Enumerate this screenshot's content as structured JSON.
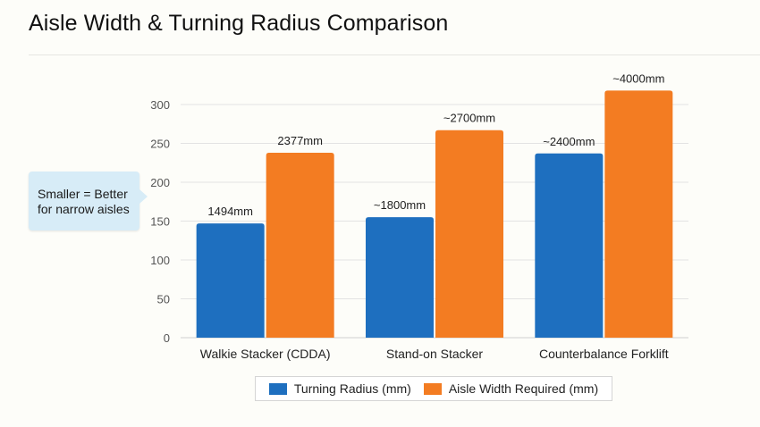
{
  "title": "Aisle Width & Turning Radius Comparison",
  "callout": "Smaller = Better for narrow aisles",
  "colors": {
    "turning": "#1e6fbf",
    "aisle": "#f37c22"
  },
  "chart_data": {
    "type": "bar",
    "title": "Aisle Width & Turning Radius Comparison",
    "categories": [
      "Walkie Stacker (CDDA)",
      "Stand-on Stacker",
      "Counterbalance Forklift"
    ],
    "series": [
      {
        "name": "Turning Radius (mm)",
        "values": [
          147,
          155,
          237
        ],
        "labels": [
          "1494mm",
          "~1800mm",
          "~2400mm"
        ]
      },
      {
        "name": "Aisle Width Required (mm)",
        "values": [
          238,
          267,
          318
        ],
        "labels": [
          "2377mm",
          "~2700mm",
          "~4000mm"
        ]
      }
    ],
    "yticks": [
      0,
      50,
      100,
      150,
      200,
      250,
      300
    ],
    "ylim": [
      0,
      300
    ],
    "xlabel": "",
    "ylabel": "",
    "grid": true,
    "legend_position": "bottom"
  }
}
